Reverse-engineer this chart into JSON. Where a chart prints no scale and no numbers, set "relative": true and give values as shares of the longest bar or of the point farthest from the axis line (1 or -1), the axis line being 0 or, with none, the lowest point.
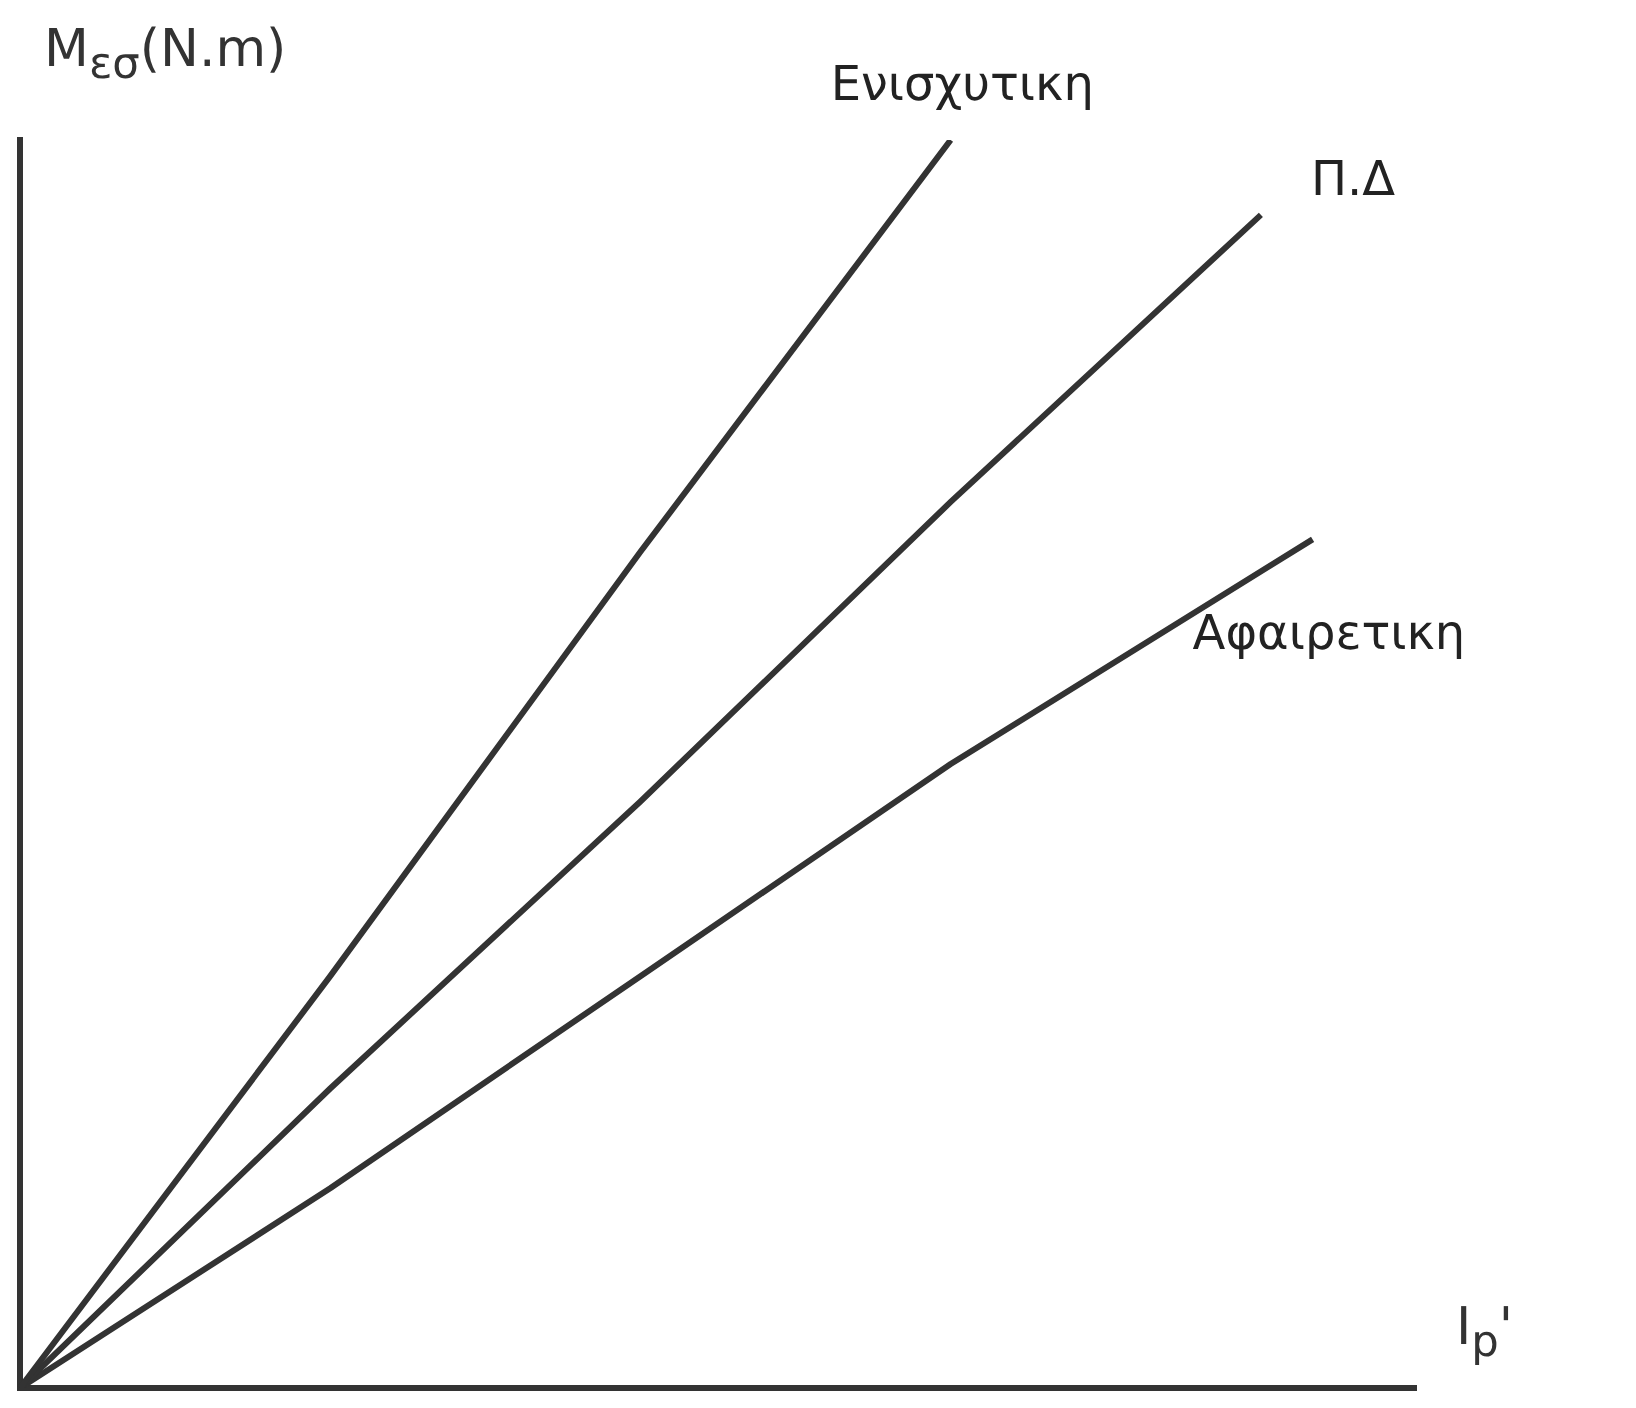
{
  "chart_data": {
    "type": "line",
    "relative": true,
    "xlabel": "I$_{p}$'",
    "ylabel": "M$_{εσ}$(N.m)",
    "categories": [
      null,
      null,
      null,
      null,
      null,
      null,
      null,
      null,
      null,
      null,
      null,
      null,
      null,
      null,
      null,
      null,
      null,
      null,
      null,
      null,
      null,
      null,
      null,
      null,
      null,
      null,
      null,
      null
    ],
    "series": [
      {
        "name": "Ενισχυτικη",
        "color": "#333333",
        "values": [
          0,
          null,
          null,
          null,
          null,
          null,
          0.33,
          null,
          null,
          null,
          null,
          null,
          0.67,
          null,
          null,
          null,
          null,
          null,
          1,
          null,
          null,
          null,
          null,
          null,
          null,
          null,
          null,
          null
        ]
      },
      {
        "name": "Π.Δ",
        "color": "#333333",
        "values": [
          0,
          null,
          null,
          null,
          null,
          null,
          0.24,
          null,
          null,
          null,
          null,
          null,
          0.47,
          null,
          null,
          null,
          null,
          null,
          0.71,
          null,
          null,
          null,
          null,
          null,
          0.94,
          null,
          null,
          null
        ]
      },
      {
        "name": "Αφαιρετικη",
        "color": "#333333",
        "values": [
          0,
          null,
          null,
          null,
          null,
          null,
          0.16,
          null,
          null,
          null,
          null,
          null,
          0.33,
          null,
          null,
          null,
          null,
          null,
          0.5,
          null,
          null,
          null,
          null,
          null,
          null,
          0.68,
          null,
          null
        ]
      }
    ],
    "legend": false,
    "grid": false,
    "marker": "none",
    "line_style": "solid"
  }
}
